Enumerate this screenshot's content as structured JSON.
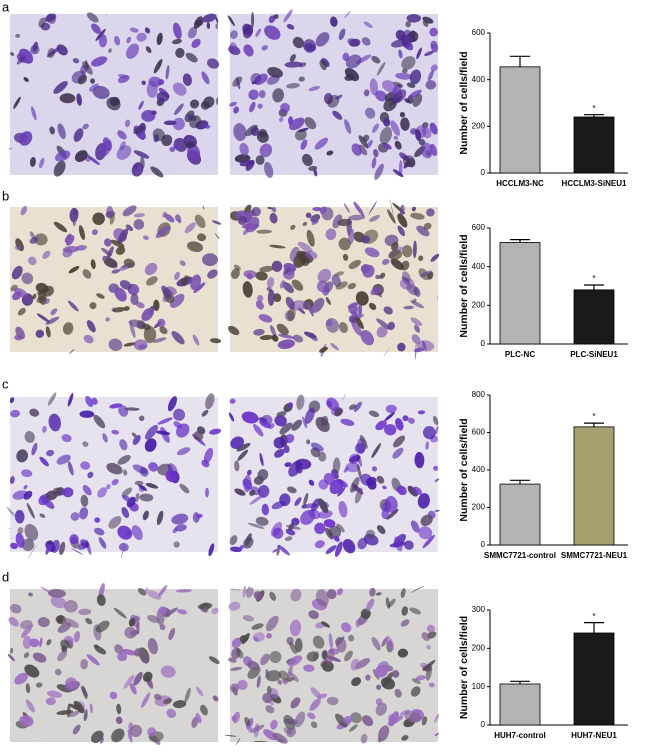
{
  "chart_data": [
    {
      "type": "bar",
      "label": "a",
      "ylabel": "Number of cells/field",
      "categories": [
        "HCCLM3-NC",
        "HCCLM3-SiNEU1"
      ],
      "values": [
        455,
        240
      ],
      "errors": [
        45,
        10
      ],
      "colors": [
        "#b3b3b3",
        "#1a1a1a"
      ],
      "ylim": [
        0,
        600
      ],
      "yticks": [
        0,
        200,
        400,
        600
      ],
      "annotation": {
        "text": "*",
        "category": 1
      }
    },
    {
      "type": "bar",
      "label": "b",
      "ylabel": "Number of cells/field",
      "categories": [
        "PLC-NC",
        "PLC-SiNEU1"
      ],
      "values": [
        525,
        280
      ],
      "errors": [
        15,
        25
      ],
      "colors": [
        "#b3b3b3",
        "#1a1a1a"
      ],
      "ylim": [
        0,
        600
      ],
      "yticks": [
        0,
        200,
        400,
        600
      ],
      "annotation": {
        "text": "*",
        "category": 1
      }
    },
    {
      "type": "bar",
      "label": "c",
      "ylabel": "Number of cells/field",
      "categories": [
        "SMMC7721-control",
        "SMMC7721-NEU1"
      ],
      "values": [
        325,
        630
      ],
      "errors": [
        20,
        20
      ],
      "colors": [
        "#b3b3b3",
        "#a89f6e"
      ],
      "ylim": [
        0,
        800
      ],
      "yticks": [
        0,
        200,
        400,
        600,
        800
      ],
      "annotation": {
        "text": "*",
        "category": 1
      }
    },
    {
      "type": "bar",
      "label": "d",
      "ylabel": "Number of cells/field",
      "categories": [
        "HUH7-control",
        "HUH7-NEU1"
      ],
      "values": [
        107,
        240
      ],
      "errors": [
        7,
        27
      ],
      "colors": [
        "#b3b3b3",
        "#1a1a1a"
      ],
      "ylim": [
        0,
        300
      ],
      "yticks": [
        0,
        100,
        200,
        300
      ],
      "annotation": {
        "text": "*",
        "category": 1
      }
    }
  ]
}
